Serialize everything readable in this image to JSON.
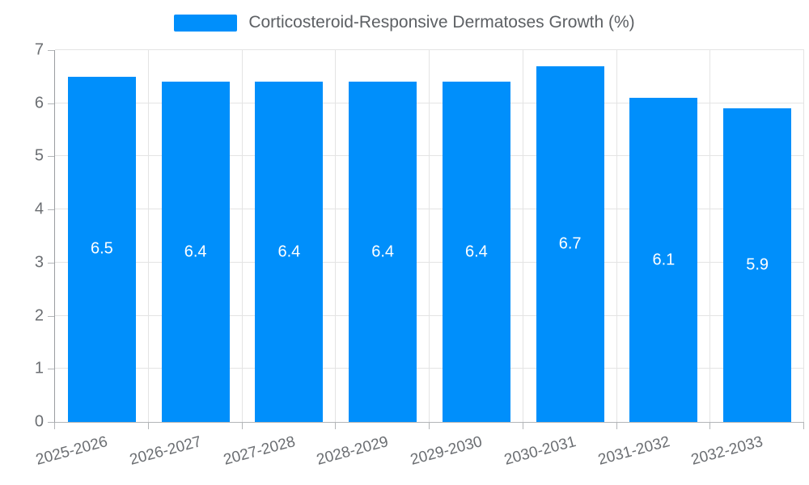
{
  "chart_data": {
    "type": "bar",
    "title": "Corticosteroid-Responsive Dermatoses Growth (%)",
    "categories": [
      "2025-2026",
      "2026-2027",
      "2027-2028",
      "2028-2029",
      "2029-2030",
      "2030-2031",
      "2031-2032",
      "2032-2033"
    ],
    "series": [
      {
        "name": "Corticosteroid-Responsive Dermatoses Growth (%)",
        "values": [
          6.5,
          6.4,
          6.4,
          6.4,
          6.4,
          6.7,
          6.1,
          5.9
        ]
      }
    ],
    "xlabel": "",
    "ylabel": "",
    "ylim": [
      0,
      7
    ],
    "yticks": [
      0,
      1,
      2,
      3,
      4,
      5,
      6,
      7
    ],
    "grid": true,
    "legend_position": "top",
    "x_label_rotation_deg": -15,
    "value_label_decimals": 1,
    "colors": {
      "bar": "#008FFB",
      "bar_value_label": "#ffffff",
      "axis_text": "#6b6e72",
      "legend_text": "#5d6064",
      "gridline": "#e4e4e4",
      "axis_line": "#9a9da1"
    }
  }
}
